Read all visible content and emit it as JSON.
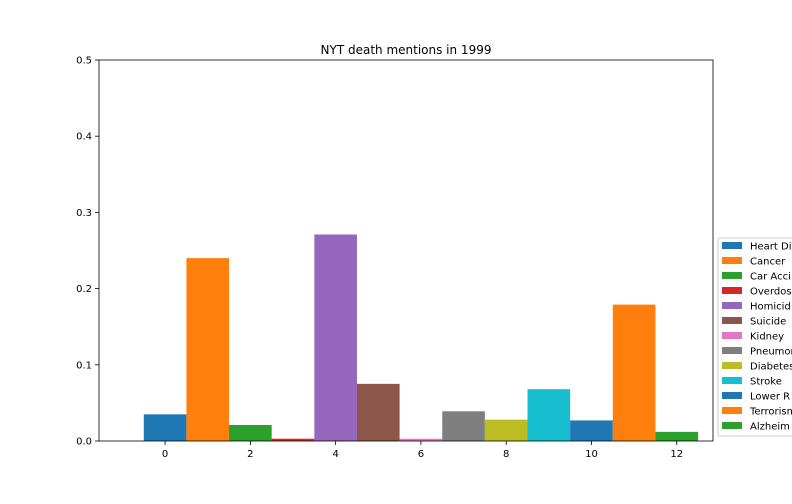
{
  "chart_data": {
    "type": "bar",
    "title": "NYT death mentions in 1999",
    "xlabel": "",
    "ylabel": "",
    "ylim": [
      0,
      0.5
    ],
    "xlim": [
      -1.05,
      13.35
    ],
    "x_ticks": [
      0,
      2,
      4,
      6,
      8,
      10,
      12
    ],
    "y_ticks": [
      0.0,
      0.1,
      0.2,
      0.3,
      0.4,
      0.5
    ],
    "grid": false,
    "legend_position": "right",
    "series": [
      {
        "name": "Heart Di",
        "x": 0,
        "value": 0.035,
        "color": "#1f77b4"
      },
      {
        "name": "Cancer",
        "x": 1,
        "value": 0.24,
        "color": "#ff7f0e"
      },
      {
        "name": "Car Acci",
        "x": 2,
        "value": 0.021,
        "color": "#2ca02c"
      },
      {
        "name": "Overdose",
        "x": 3,
        "value": 0.003,
        "color": "#d62728"
      },
      {
        "name": "Homicid",
        "x": 4,
        "value": 0.271,
        "color": "#9467bd"
      },
      {
        "name": "Suicide",
        "x": 5,
        "value": 0.075,
        "color": "#8c564b"
      },
      {
        "name": "Kidney",
        "x": 6,
        "value": 0.003,
        "color": "#e377c2"
      },
      {
        "name": "Pneumon",
        "x": 7,
        "value": 0.039,
        "color": "#7f7f7f"
      },
      {
        "name": "Diabetes",
        "x": 8,
        "value": 0.028,
        "color": "#bcbd22"
      },
      {
        "name": "Stroke",
        "x": 9,
        "value": 0.068,
        "color": "#17becf"
      },
      {
        "name": "Lower R",
        "x": 10,
        "value": 0.027,
        "color": "#1f77b4"
      },
      {
        "name": "Terrorism",
        "x": 11,
        "value": 0.179,
        "color": "#ff7f0e"
      },
      {
        "name": "Alzheim",
        "x": 12,
        "value": 0.012,
        "color": "#2ca02c"
      }
    ]
  }
}
